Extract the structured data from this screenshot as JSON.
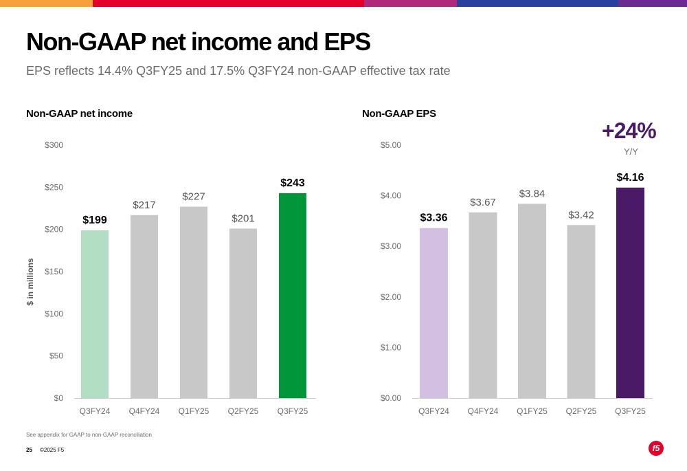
{
  "colors": {
    "top_bar": [
      "#f6a13c",
      "#e4002b",
      "#b0287a",
      "#2a3f9d",
      "#6a2a8f"
    ],
    "income_bars": [
      "#b2dfc3",
      "#c8c8c8",
      "#c8c8c8",
      "#c8c8c8",
      "#009639"
    ],
    "eps_bars": [
      "#d3bfe0",
      "#c8c8c8",
      "#c8c8c8",
      "#c8c8c8",
      "#4a1a67"
    ],
    "callout": "#4a1a67",
    "logo": "#e4002b"
  },
  "header": {
    "title": "Non-GAAP net income and EPS",
    "subtitle": "EPS reflects 14.4% Q3FY25 and 17.5% Q3FY24 non-GAAP effective tax rate"
  },
  "callout": {
    "value": "+24%",
    "label": "Y/Y"
  },
  "footer": {
    "note": "See appendix for GAAP to non-GAAP reconciliation",
    "page": "25",
    "copyright": "©2025 F5",
    "logo_text": "f5"
  },
  "chart_data": [
    {
      "type": "bar",
      "title": "Non-GAAP net income",
      "ylabel": "$ in millions",
      "categories": [
        "Q3FY24",
        "Q4FY24",
        "Q1FY25",
        "Q2FY25",
        "Q3FY25"
      ],
      "values": [
        199,
        217,
        227,
        201,
        243
      ],
      "data_labels": [
        "$199",
        "$217",
        "$227",
        "$201",
        "$243"
      ],
      "highlighted": [
        true,
        false,
        false,
        false,
        true
      ],
      "ylim": [
        0,
        300
      ],
      "yticks": [
        0,
        50,
        100,
        150,
        200,
        250,
        300
      ],
      "ytick_labels": [
        "$0",
        "$50",
        "$100",
        "$150",
        "$200",
        "$250",
        "$300"
      ]
    },
    {
      "type": "bar",
      "title": "Non-GAAP EPS",
      "ylabel": "",
      "categories": [
        "Q3FY24",
        "Q4FY24",
        "Q1FY25",
        "Q2FY25",
        "Q3FY25"
      ],
      "values": [
        3.36,
        3.67,
        3.84,
        3.42,
        4.16
      ],
      "data_labels": [
        "$3.36",
        "$3.67",
        "$3.84",
        "$3.42",
        "$4.16"
      ],
      "highlighted": [
        true,
        false,
        false,
        false,
        true
      ],
      "ylim": [
        0,
        5
      ],
      "yticks": [
        0,
        1,
        2,
        3,
        4,
        5
      ],
      "ytick_labels": [
        "$0.00",
        "$1.00",
        "$2.00",
        "$3.00",
        "$4.00",
        "$5.00"
      ]
    }
  ]
}
